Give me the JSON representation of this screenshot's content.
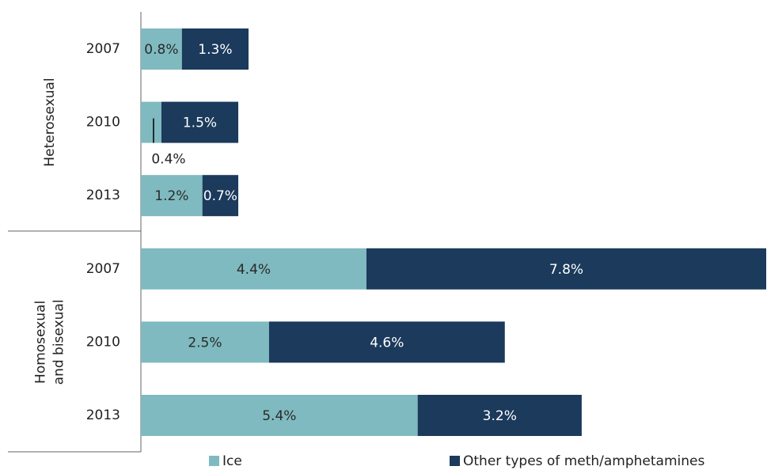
{
  "chart_data": {
    "type": "stacked-barh",
    "categories": [
      "2007",
      "2010",
      "2013",
      "2007",
      "2010",
      "2013"
    ],
    "groups": [
      {
        "label": [
          "Heterosexual"
        ],
        "size": 3
      },
      {
        "label": [
          "Homosexual",
          "and bisexual"
        ],
        "size": 3
      }
    ],
    "series": [
      {
        "name": "Ice",
        "color": "#7fbac0",
        "values": [
          0.8,
          0.4,
          1.2,
          4.4,
          2.5,
          5.4
        ],
        "value_labels": [
          "0.8%",
          "0.4%",
          "1.2%",
          "4.4%",
          "2.5%",
          "5.4%"
        ]
      },
      {
        "name": "Other types of meth/amphetamines",
        "color": "#1b3a5c",
        "values": [
          1.3,
          1.5,
          0.7,
          7.8,
          4.6,
          3.2
        ],
        "value_labels": [
          "1.3%",
          "1.5%",
          "0.7%",
          "7.8%",
          "4.6%",
          "3.2%"
        ]
      }
    ],
    "xlim": [
      0,
      12.2
    ],
    "legend": "bottom"
  }
}
